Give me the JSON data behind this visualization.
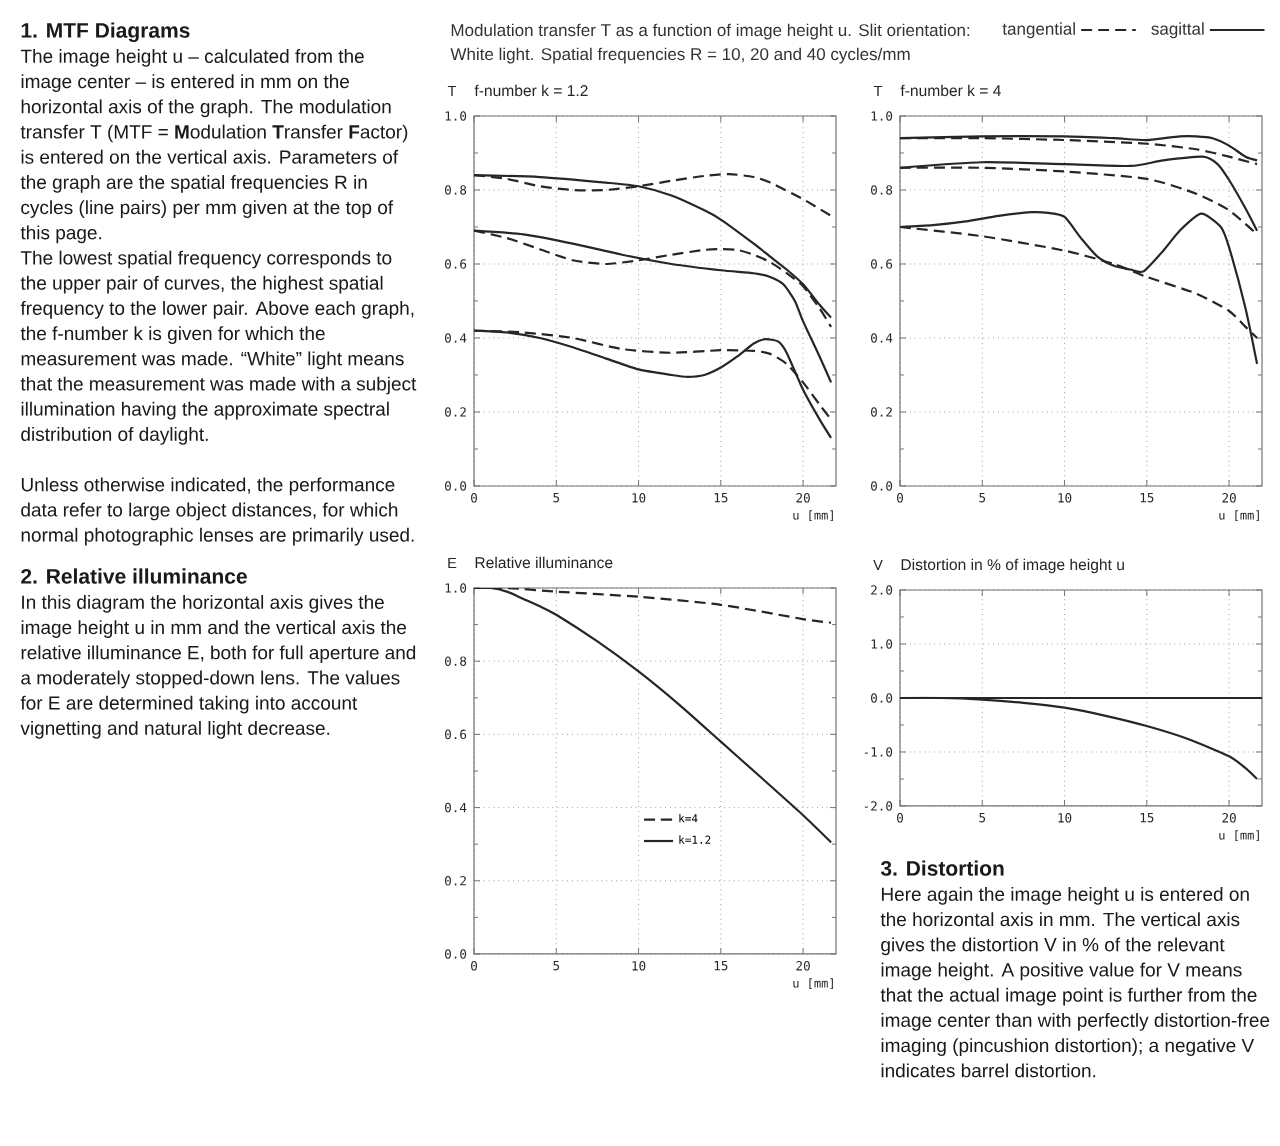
{
  "chart_data": [
    {
      "type": "line",
      "title": "f-number k = 1.2",
      "xlabel": "u [mm]",
      "ylabel": "T",
      "annotations": [
        "Modulation transfer T as a function of image height u. Slit orientation:",
        "White light. Spatial frequencies R = 10, 20 and 40 cycles/mm",
        "1. MTF Diagrams",
        "The image height u – calculated from the image center – is entered in mm on the horizontal axis of the graph. The modulation transfer T (MTF = **M**odulation **T**ransfer **F**actor) is entered on the vertical axis. Parameters of the graph are the spatial frequencies R in cycles (line pairs) per mm given at the top of this page.",
        "The lowest spatial frequency corresponds to the upper pair of curves, the highest spatial frequency to the lower pair. Above each graph, the f-number k is given for which the measurement was made. “White” light means that the measurement was made with a subject illumination having the approximate spectral distribution of daylight.",
        "Unless otherwise indicated, the performance data refer to large object distances, for which normal photographic lenses are primarily used."
      ],
      "xlim": [
        0,
        22
      ],
      "ylim": [
        0,
        1
      ],
      "xticks": [
        0,
        5,
        10,
        15,
        20
      ],
      "yticks": [
        {
          "value": 0,
          "label": "0.0"
        },
        {
          "value": 0.1,
          "label": null
        },
        0.2,
        {
          "value": 0.3,
          "label": null
        },
        0.4,
        {
          "value": 0.5,
          "label": null
        },
        0.6,
        {
          "value": 0.7,
          "label": null
        },
        0.8,
        {
          "value": 0.9,
          "label": null
        },
        {
          "value": 1,
          "label": "1.0"
        }
      ],
      "grid": true,
      "legend": "top",
      "series": [
        {
          "name": "tangential",
          "color": "#262626",
          "line_style": "dashed",
          "x": [
            0,
            2,
            4,
            6,
            8,
            10,
            12,
            14,
            15.5,
            17,
            18,
            20,
            21.7
          ],
          "values": [
            0.84,
            0.83,
            0.81,
            0.8,
            0.8,
            0.81,
            0.825,
            0.838,
            0.843,
            0.835,
            0.82,
            0.775,
            0.73
          ]
        },
        {
          "name": "sagittal",
          "color": "#262626",
          "line_style": "solid",
          "x": [
            0,
            4,
            8,
            10,
            12,
            14,
            15,
            17,
            18,
            19,
            20,
            21,
            21.7
          ],
          "values": [
            0.84,
            0.835,
            0.82,
            0.81,
            0.785,
            0.745,
            0.72,
            0.655,
            0.62,
            0.585,
            0.545,
            0.49,
            0.455
          ]
        },
        {
          "color": "#262626",
          "line_style": "dashed",
          "x": [
            0,
            2,
            4,
            6,
            8,
            10,
            12,
            14,
            15,
            16,
            17,
            18,
            19,
            20,
            21,
            21.7
          ],
          "values": [
            0.69,
            0.67,
            0.64,
            0.61,
            0.6,
            0.61,
            0.625,
            0.638,
            0.64,
            0.638,
            0.625,
            0.605,
            0.575,
            0.54,
            0.48,
            0.43
          ]
        },
        {
          "color": "#262626",
          "line_style": "solid",
          "x": [
            0,
            3,
            6,
            9,
            12,
            15,
            17,
            18,
            18.8,
            19.5,
            20,
            21,
            21.7
          ],
          "values": [
            0.69,
            0.68,
            0.655,
            0.625,
            0.6,
            0.583,
            0.575,
            0.565,
            0.545,
            0.5,
            0.445,
            0.35,
            0.28
          ]
        },
        {
          "color": "#262626",
          "line_style": "dashed",
          "x": [
            0,
            3,
            6,
            9,
            12,
            15,
            17,
            18,
            19,
            20,
            21,
            21.7
          ],
          "values": [
            0.42,
            0.415,
            0.4,
            0.37,
            0.36,
            0.367,
            0.365,
            0.357,
            0.33,
            0.28,
            0.22,
            0.18
          ]
        },
        {
          "color": "#262626",
          "line_style": "solid",
          "x": [
            0,
            2,
            4,
            6,
            8,
            10,
            12,
            13,
            14,
            15,
            16,
            17,
            17.7,
            18.5,
            19,
            20,
            21,
            21.7
          ],
          "values": [
            0.42,
            0.415,
            0.4,
            0.375,
            0.345,
            0.315,
            0.3,
            0.295,
            0.3,
            0.32,
            0.35,
            0.385,
            0.397,
            0.39,
            0.36,
            0.26,
            0.18,
            0.13
          ]
        }
      ]
    },
    {
      "type": "line",
      "title": "f-number k = 4",
      "xlabel": "u [mm]",
      "ylabel": "T",
      "xlim": [
        0,
        22
      ],
      "ylim": [
        0,
        1
      ],
      "xticks": [
        0,
        5,
        10,
        15,
        20
      ],
      "yticks": [
        {
          "value": 0,
          "label": "0.0"
        },
        {
          "value": 0.1,
          "label": null
        },
        0.2,
        {
          "value": 0.3,
          "label": null
        },
        0.4,
        {
          "value": 0.5,
          "label": null
        },
        0.6,
        {
          "value": 0.7,
          "label": null
        },
        0.8,
        {
          "value": 0.9,
          "label": null
        },
        {
          "value": 1,
          "label": "1.0"
        }
      ],
      "grid": true,
      "series": [
        {
          "color": "#262626",
          "line_style": "dashed",
          "x": [
            0,
            5,
            10,
            15,
            18,
            20,
            21.7
          ],
          "values": [
            0.94,
            0.94,
            0.935,
            0.925,
            0.91,
            0.89,
            0.87
          ]
        },
        {
          "color": "#262626",
          "line_style": "solid",
          "x": [
            0,
            5,
            10,
            13,
            15,
            17,
            18,
            19,
            20,
            21,
            21.7
          ],
          "values": [
            0.94,
            0.945,
            0.945,
            0.94,
            0.935,
            0.945,
            0.945,
            0.94,
            0.92,
            0.89,
            0.88
          ]
        },
        {
          "color": "#262626",
          "line_style": "dashed",
          "x": [
            0,
            5,
            10,
            15,
            18,
            20,
            21.7
          ],
          "values": [
            0.86,
            0.86,
            0.85,
            0.83,
            0.79,
            0.745,
            0.68
          ]
        },
        {
          "color": "#262626",
          "line_style": "solid",
          "x": [
            0,
            5,
            10,
            14,
            16,
            18.4,
            19.3,
            20,
            21,
            21.7
          ],
          "values": [
            0.86,
            0.875,
            0.87,
            0.865,
            0.88,
            0.89,
            0.87,
            0.827,
            0.75,
            0.69
          ]
        },
        {
          "color": "#262626",
          "line_style": "dashed",
          "x": [
            0,
            5,
            10,
            13,
            15,
            18,
            20,
            21,
            21.7
          ],
          "values": [
            0.7,
            0.675,
            0.636,
            0.6,
            0.565,
            0.52,
            0.473,
            0.43,
            0.4
          ]
        },
        {
          "color": "#262626",
          "line_style": "solid",
          "x": [
            0,
            2,
            4,
            6,
            8,
            9,
            10,
            11,
            12,
            13,
            14,
            14.8,
            16,
            17,
            18.3,
            19.5,
            20,
            21,
            21.7
          ],
          "values": [
            0.7,
            0.705,
            0.715,
            0.73,
            0.74,
            0.738,
            0.727,
            0.67,
            0.62,
            0.595,
            0.585,
            0.58,
            0.636,
            0.69,
            0.736,
            0.7,
            0.645,
            0.48,
            0.33
          ]
        }
      ]
    },
    {
      "type": "line",
      "title": "Relative illuminance",
      "xlabel": "u [mm]",
      "ylabel": "E",
      "annotations": [
        "2. Relative illuminance",
        "In this diagram the horizontal axis gives the image height u in mm and the vertical axis the relative illuminance E, both for full aperture and a moderately stopped-down lens. The values for E are determined taking into account vignetting and natural light decrease."
      ],
      "xlim": [
        0,
        22
      ],
      "ylim": [
        0,
        1
      ],
      "xticks": [
        0,
        5,
        10,
        15,
        20
      ],
      "yticks": [
        {
          "value": 0,
          "label": "0.0"
        },
        {
          "value": 0.1,
          "label": null
        },
        0.2,
        {
          "value": 0.3,
          "label": null
        },
        0.4,
        {
          "value": 0.5,
          "label": null
        },
        0.6,
        {
          "value": 0.7,
          "label": null
        },
        0.8,
        {
          "value": 0.9,
          "label": null
        },
        {
          "value": 1,
          "label": "1.0"
        }
      ],
      "grid": true,
      "legend": "center",
      "series": [
        {
          "name": "k=4",
          "color": "#262626",
          "line_style": "dashed",
          "x": [
            0,
            2,
            5,
            10,
            15,
            20,
            21.7
          ],
          "values": [
            1,
            1,
            0.99,
            0.976,
            0.954,
            0.915,
            0.905
          ]
        },
        {
          "name": "k=1.2",
          "color": "#262626",
          "line_style": "solid",
          "x": [
            0,
            1,
            2,
            3,
            4,
            5,
            7.5,
            10,
            12.5,
            15,
            17.5,
            20,
            21.7
          ],
          "values": [
            1,
            1,
            0.99,
            0.97,
            0.95,
            0.927,
            0.854,
            0.772,
            0.68,
            0.58,
            0.48,
            0.379,
            0.305
          ]
        }
      ]
    },
    {
      "type": "line",
      "title": "Distortion in % of image height u",
      "xlabel": "u [mm]",
      "ylabel": "V",
      "annotations": [
        "3. Distortion",
        "Here again the image height u is entered on the horizontal axis in mm. The vertical axis gives the distortion V in % of the relevant image height. A positive value for V means that the actual image point is further from the image center than with perfectly distortion-free imaging (pincushion distortion); a negative V indicates barrel distortion."
      ],
      "xlim": [
        0,
        22
      ],
      "ylim": [
        -2,
        2
      ],
      "xticks": [
        0,
        5,
        10,
        15,
        20
      ],
      "yticks": [
        {
          "value": -2,
          "label": "-2.0"
        },
        {
          "value": -1.5,
          "label": null
        },
        {
          "value": -1,
          "label": "-1.0"
        },
        {
          "value": -0.5,
          "label": null
        },
        {
          "value": 0,
          "label": "0.0"
        },
        {
          "value": 0.5,
          "label": null
        },
        {
          "value": 1,
          "label": "1.0"
        },
        {
          "value": 1.5,
          "label": null
        },
        {
          "value": 2,
          "label": "2.0"
        }
      ],
      "grid": true,
      "ref_lines": [
        {
          "axis": "y",
          "value": 0,
          "color": "#262626"
        }
      ],
      "series": [
        {
          "color": "#262626",
          "line_style": "solid",
          "x": [
            0,
            2.5,
            5,
            7.5,
            10,
            12.5,
            15,
            17.5,
            20,
            21,
            21.7
          ],
          "values": [
            0,
            0,
            -0.03,
            -0.09,
            -0.18,
            -0.33,
            -0.52,
            -0.76,
            -1.08,
            -1.3,
            -1.5
          ]
        }
      ]
    }
  ]
}
